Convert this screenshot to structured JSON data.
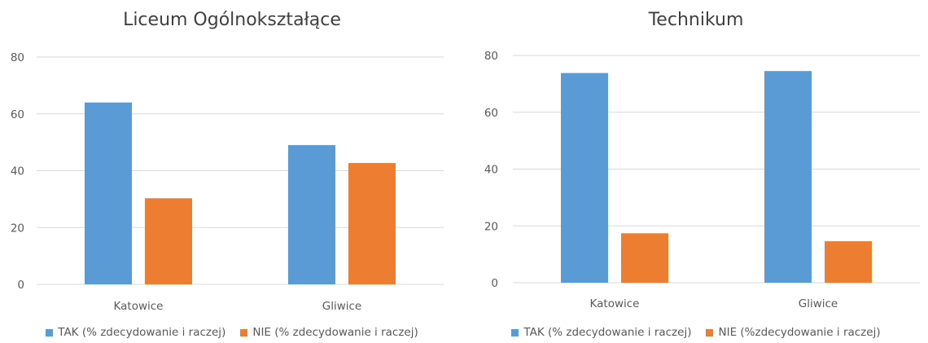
{
  "chart_data": [
    {
      "type": "bar",
      "title": "Liceum Ogólnokształące",
      "categories": [
        "Katowice",
        "Gliwice"
      ],
      "series": [
        {
          "name": "TAK (% zdecydowanie i raczej)",
          "color": "#5B9BD5",
          "values": [
            64,
            49
          ]
        },
        {
          "name": "NIE (% zdecydowanie i raczej)",
          "color": "#ED7D31",
          "values": [
            30.3,
            42.7
          ]
        }
      ],
      "ylim": [
        0,
        80
      ],
      "yticks": [
        0,
        20,
        40,
        60,
        80
      ],
      "grid": true,
      "legend": "bottom"
    },
    {
      "type": "bar",
      "title": "Technikum",
      "categories": [
        "Katowice",
        "Gliwice"
      ],
      "series": [
        {
          "name": "TAK (% zdecydowanie i raczej)",
          "color": "#5B9BD5",
          "values": [
            73.8,
            74.5
          ]
        },
        {
          "name": "NIE (%zdecydowanie i raczej)",
          "color": "#ED7D31",
          "values": [
            17.4,
            14.6
          ]
        }
      ],
      "ylim": [
        0,
        80
      ],
      "yticks": [
        0,
        20,
        40,
        60,
        80
      ],
      "grid": true,
      "legend": "bottom"
    }
  ]
}
